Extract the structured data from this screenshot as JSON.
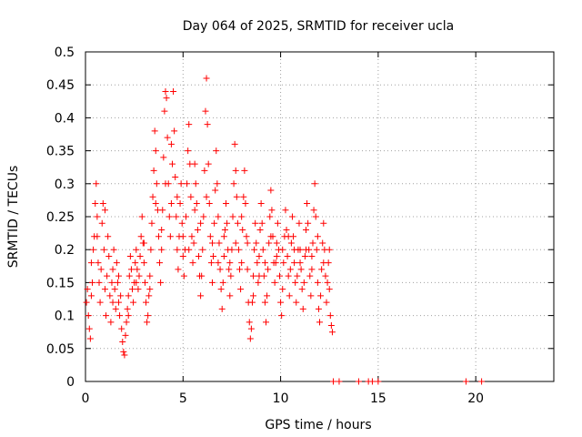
{
  "chart_data": {
    "type": "scatter",
    "title": "Day 064 of 2025, SRMTID for receiver ucla",
    "xlabel": "GPS time / hours",
    "ylabel": "SRMTID / TECUs",
    "xlim": [
      0,
      24
    ],
    "ylim": [
      0,
      0.5
    ],
    "xticks": [
      0,
      5,
      10,
      15,
      20
    ],
    "yticks": [
      0,
      0.05,
      0.1,
      0.15,
      0.2,
      0.25,
      0.3,
      0.35,
      0.4,
      0.45,
      0.5
    ],
    "grid": true,
    "marker": "plus",
    "color": "#ff0000",
    "points": [
      [
        0.05,
        0.12
      ],
      [
        0.1,
        0.14
      ],
      [
        0.15,
        0.1
      ],
      [
        0.2,
        0.08
      ],
      [
        0.25,
        0.065
      ],
      [
        0.3,
        0.13
      ],
      [
        0.35,
        0.15
      ],
      [
        0.4,
        0.2
      ],
      [
        0.45,
        0.22
      ],
      [
        0.5,
        0.27
      ],
      [
        0.55,
        0.3
      ],
      [
        0.6,
        0.25
      ],
      [
        0.65,
        0.18
      ],
      [
        0.7,
        0.15
      ],
      [
        0.75,
        0.12
      ],
      [
        0.8,
        0.17
      ],
      [
        0.85,
        0.24
      ],
      [
        0.9,
        0.27
      ],
      [
        0.95,
        0.2
      ],
      [
        1.0,
        0.14
      ],
      [
        1.05,
        0.1
      ],
      [
        1.1,
        0.16
      ],
      [
        1.15,
        0.22
      ],
      [
        1.2,
        0.19
      ],
      [
        1.25,
        0.13
      ],
      [
        1.3,
        0.09
      ],
      [
        1.35,
        0.15
      ],
      [
        1.4,
        0.17
      ],
      [
        1.45,
        0.2
      ],
      [
        1.5,
        0.14
      ],
      [
        1.55,
        0.11
      ],
      [
        1.6,
        0.18
      ],
      [
        1.65,
        0.15
      ],
      [
        1.7,
        0.12
      ],
      [
        1.75,
        0.1
      ],
      [
        1.8,
        0.13
      ],
      [
        1.85,
        0.08
      ],
      [
        1.9,
        0.06
      ],
      [
        1.95,
        0.045
      ],
      [
        2.0,
        0.04
      ],
      [
        2.05,
        0.07
      ],
      [
        2.1,
        0.09
      ],
      [
        2.15,
        0.11
      ],
      [
        2.2,
        0.13
      ],
      [
        2.25,
        0.16
      ],
      [
        2.3,
        0.19
      ],
      [
        2.35,
        0.17
      ],
      [
        2.4,
        0.14
      ],
      [
        2.45,
        0.12
      ],
      [
        2.5,
        0.15
      ],
      [
        2.55,
        0.18
      ],
      [
        2.6,
        0.2
      ],
      [
        2.65,
        0.17
      ],
      [
        2.7,
        0.14
      ],
      [
        2.75,
        0.16
      ],
      [
        2.8,
        0.19
      ],
      [
        2.85,
        0.22
      ],
      [
        2.9,
        0.25
      ],
      [
        2.95,
        0.21
      ],
      [
        3.0,
        0.18
      ],
      [
        3.05,
        0.15
      ],
      [
        3.1,
        0.12
      ],
      [
        3.15,
        0.09
      ],
      [
        3.2,
        0.1
      ],
      [
        3.25,
        0.13
      ],
      [
        3.3,
        0.16
      ],
      [
        3.35,
        0.2
      ],
      [
        3.4,
        0.24
      ],
      [
        3.45,
        0.28
      ],
      [
        3.5,
        0.32
      ],
      [
        3.55,
        0.38
      ],
      [
        3.6,
        0.35
      ],
      [
        3.65,
        0.3
      ],
      [
        3.7,
        0.26
      ],
      [
        3.75,
        0.22
      ],
      [
        3.8,
        0.18
      ],
      [
        3.85,
        0.15
      ],
      [
        3.9,
        0.2
      ],
      [
        3.95,
        0.26
      ],
      [
        4.0,
        0.34
      ],
      [
        4.05,
        0.41
      ],
      [
        4.1,
        0.44
      ],
      [
        4.15,
        0.43
      ],
      [
        4.2,
        0.37
      ],
      [
        4.25,
        0.3
      ],
      [
        4.3,
        0.25
      ],
      [
        4.35,
        0.22
      ],
      [
        4.4,
        0.27
      ],
      [
        4.45,
        0.33
      ],
      [
        4.5,
        0.44
      ],
      [
        4.55,
        0.38
      ],
      [
        4.6,
        0.31
      ],
      [
        4.65,
        0.25
      ],
      [
        4.7,
        0.2
      ],
      [
        4.75,
        0.17
      ],
      [
        4.8,
        0.22
      ],
      [
        4.85,
        0.27
      ],
      [
        4.9,
        0.3
      ],
      [
        4.95,
        0.24
      ],
      [
        5.0,
        0.19
      ],
      [
        5.05,
        0.16
      ],
      [
        5.1,
        0.2
      ],
      [
        5.15,
        0.25
      ],
      [
        5.2,
        0.3
      ],
      [
        5.25,
        0.35
      ],
      [
        5.3,
        0.39
      ],
      [
        5.35,
        0.33
      ],
      [
        5.4,
        0.28
      ],
      [
        5.45,
        0.22
      ],
      [
        5.5,
        0.18
      ],
      [
        5.55,
        0.21
      ],
      [
        5.6,
        0.26
      ],
      [
        5.65,
        0.3
      ],
      [
        5.7,
        0.27
      ],
      [
        5.75,
        0.23
      ],
      [
        5.8,
        0.19
      ],
      [
        5.85,
        0.16
      ],
      [
        5.9,
        0.13
      ],
      [
        5.95,
        0.16
      ],
      [
        6.0,
        0.2
      ],
      [
        6.05,
        0.25
      ],
      [
        6.1,
        0.32
      ],
      [
        6.15,
        0.41
      ],
      [
        6.2,
        0.46
      ],
      [
        6.25,
        0.39
      ],
      [
        6.3,
        0.33
      ],
      [
        6.35,
        0.27
      ],
      [
        6.4,
        0.22
      ],
      [
        6.45,
        0.18
      ],
      [
        6.5,
        0.15
      ],
      [
        6.55,
        0.19
      ],
      [
        6.6,
        0.24
      ],
      [
        6.65,
        0.29
      ],
      [
        6.7,
        0.35
      ],
      [
        6.75,
        0.3
      ],
      [
        6.8,
        0.25
      ],
      [
        6.85,
        0.21
      ],
      [
        6.9,
        0.17
      ],
      [
        6.95,
        0.14
      ],
      [
        7.0,
        0.11
      ],
      [
        7.05,
        0.15
      ],
      [
        7.1,
        0.19
      ],
      [
        7.15,
        0.23
      ],
      [
        7.2,
        0.27
      ],
      [
        7.25,
        0.24
      ],
      [
        7.3,
        0.2
      ],
      [
        7.35,
        0.17
      ],
      [
        7.4,
        0.13
      ],
      [
        7.45,
        0.16
      ],
      [
        7.5,
        0.2
      ],
      [
        7.55,
        0.25
      ],
      [
        7.6,
        0.3
      ],
      [
        7.65,
        0.36
      ],
      [
        7.7,
        0.32
      ],
      [
        7.75,
        0.28
      ],
      [
        7.8,
        0.24
      ],
      [
        7.85,
        0.2
      ],
      [
        7.9,
        0.17
      ],
      [
        7.95,
        0.14
      ],
      [
        8.0,
        0.18
      ],
      [
        8.05,
        0.23
      ],
      [
        8.1,
        0.28
      ],
      [
        8.15,
        0.32
      ],
      [
        8.2,
        0.27
      ],
      [
        8.25,
        0.22
      ],
      [
        8.3,
        0.17
      ],
      [
        8.35,
        0.12
      ],
      [
        8.4,
        0.09
      ],
      [
        8.45,
        0.065
      ],
      [
        8.5,
        0.08
      ],
      [
        8.55,
        0.12
      ],
      [
        8.6,
        0.16
      ],
      [
        8.65,
        0.2
      ],
      [
        8.7,
        0.24
      ],
      [
        8.75,
        0.21
      ],
      [
        8.8,
        0.18
      ],
      [
        8.85,
        0.15
      ],
      [
        8.9,
        0.19
      ],
      [
        8.95,
        0.23
      ],
      [
        9.0,
        0.27
      ],
      [
        9.05,
        0.24
      ],
      [
        9.1,
        0.2
      ],
      [
        9.15,
        0.16
      ],
      [
        9.2,
        0.12
      ],
      [
        9.25,
        0.09
      ],
      [
        9.3,
        0.13
      ],
      [
        9.35,
        0.17
      ],
      [
        9.4,
        0.21
      ],
      [
        9.45,
        0.25
      ],
      [
        9.5,
        0.29
      ],
      [
        9.55,
        0.26
      ],
      [
        9.6,
        0.22
      ],
      [
        9.65,
        0.18
      ],
      [
        9.7,
        0.15
      ],
      [
        9.75,
        0.18
      ],
      [
        9.8,
        0.21
      ],
      [
        9.85,
        0.24
      ],
      [
        9.9,
        0.2
      ],
      [
        9.95,
        0.16
      ],
      [
        10.0,
        0.12
      ],
      [
        10.05,
        0.1
      ],
      [
        10.1,
        0.14
      ],
      [
        10.15,
        0.18
      ],
      [
        10.2,
        0.22
      ],
      [
        10.25,
        0.26
      ],
      [
        10.3,
        0.23
      ],
      [
        10.35,
        0.19
      ],
      [
        10.4,
        0.16
      ],
      [
        10.45,
        0.13
      ],
      [
        10.5,
        0.17
      ],
      [
        10.55,
        0.21
      ],
      [
        10.6,
        0.25
      ],
      [
        10.65,
        0.22
      ],
      [
        10.7,
        0.18
      ],
      [
        10.75,
        0.15
      ],
      [
        10.8,
        0.12
      ],
      [
        10.85,
        0.16
      ],
      [
        10.9,
        0.2
      ],
      [
        10.95,
        0.24
      ],
      [
        11.0,
        0.2
      ],
      [
        11.05,
        0.17
      ],
      [
        11.1,
        0.14
      ],
      [
        11.15,
        0.11
      ],
      [
        11.2,
        0.15
      ],
      [
        11.25,
        0.19
      ],
      [
        11.3,
        0.23
      ],
      [
        11.35,
        0.27
      ],
      [
        11.4,
        0.24
      ],
      [
        11.45,
        0.2
      ],
      [
        11.5,
        0.16
      ],
      [
        11.55,
        0.13
      ],
      [
        11.6,
        0.17
      ],
      [
        11.65,
        0.21
      ],
      [
        11.7,
        0.26
      ],
      [
        11.75,
        0.3
      ],
      [
        11.8,
        0.25
      ],
      [
        11.85,
        0.2
      ],
      [
        11.9,
        0.15
      ],
      [
        11.95,
        0.11
      ],
      [
        12.0,
        0.09
      ],
      [
        12.05,
        0.13
      ],
      [
        12.1,
        0.17
      ],
      [
        12.15,
        0.21
      ],
      [
        12.2,
        0.24
      ],
      [
        12.25,
        0.2
      ],
      [
        12.3,
        0.16
      ],
      [
        12.35,
        0.12
      ],
      [
        12.4,
        0.15
      ],
      [
        12.45,
        0.18
      ],
      [
        12.5,
        0.14
      ],
      [
        12.55,
        0.1
      ],
      [
        12.6,
        0.085
      ],
      [
        12.65,
        0.075
      ],
      [
        12.7,
        0.0
      ],
      [
        13.0,
        0.0
      ],
      [
        14.0,
        0.0
      ],
      [
        14.5,
        0.0
      ],
      [
        14.7,
        0.0
      ],
      [
        15.0,
        0.0
      ],
      [
        19.5,
        0.0
      ],
      [
        20.3,
        0.0
      ],
      [
        0.3,
        0.18
      ],
      [
        0.6,
        0.22
      ],
      [
        1.0,
        0.26
      ],
      [
        1.4,
        0.12
      ],
      [
        1.7,
        0.16
      ],
      [
        2.2,
        0.1
      ],
      [
        2.6,
        0.15
      ],
      [
        3.0,
        0.21
      ],
      [
        3.3,
        0.14
      ],
      [
        3.6,
        0.27
      ],
      [
        3.9,
        0.23
      ],
      [
        4.1,
        0.3
      ],
      [
        4.4,
        0.36
      ],
      [
        4.7,
        0.28
      ],
      [
        5.0,
        0.22
      ],
      [
        5.3,
        0.2
      ],
      [
        5.6,
        0.33
      ],
      [
        5.9,
        0.24
      ],
      [
        6.2,
        0.28
      ],
      [
        6.5,
        0.21
      ],
      [
        6.8,
        0.18
      ],
      [
        7.1,
        0.22
      ],
      [
        7.4,
        0.18
      ],
      [
        7.7,
        0.21
      ],
      [
        8.0,
        0.25
      ],
      [
        8.3,
        0.21
      ],
      [
        8.6,
        0.13
      ],
      [
        8.9,
        0.16
      ],
      [
        9.2,
        0.18
      ],
      [
        9.5,
        0.22
      ],
      [
        9.8,
        0.19
      ],
      [
        10.1,
        0.2
      ],
      [
        10.4,
        0.22
      ],
      [
        10.7,
        0.2
      ],
      [
        11.0,
        0.18
      ],
      [
        11.3,
        0.2
      ],
      [
        11.6,
        0.19
      ],
      [
        11.9,
        0.22
      ],
      [
        12.2,
        0.18
      ],
      [
        12.5,
        0.2
      ]
    ]
  }
}
